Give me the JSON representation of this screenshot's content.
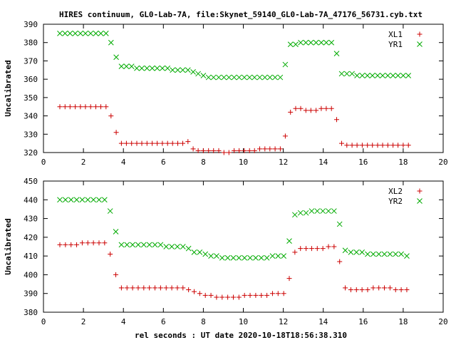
{
  "title": "HIRES continuum, GL0-Lab-7A, file:Skynet_59140_GL0-Lab-7A_47176_56731.cyb.txt",
  "xlabel": "rel seconds : UT date 2020-10-18T18:56:38.310",
  "colors": {
    "red": "#cc0000",
    "green": "#00aa00"
  },
  "chart_data": [
    {
      "type": "scatter",
      "ylabel": "Uncalibrated",
      "xlim": [
        0,
        20
      ],
      "ylim": [
        320,
        390
      ],
      "xticks": [
        0,
        2,
        4,
        6,
        8,
        10,
        12,
        14,
        16,
        18,
        20
      ],
      "yticks": [
        320,
        330,
        340,
        350,
        360,
        370,
        380,
        390
      ],
      "legend": "top-right",
      "x": [
        0.82,
        1.08,
        1.33,
        1.59,
        1.85,
        2.1,
        2.36,
        2.62,
        2.87,
        3.13,
        3.38,
        3.64,
        3.9,
        4.15,
        4.41,
        4.67,
        4.92,
        5.18,
        5.44,
        5.69,
        5.95,
        6.21,
        6.46,
        6.72,
        6.97,
        7.23,
        7.49,
        7.74,
        8.0,
        8.26,
        8.51,
        8.77,
        9.03,
        9.28,
        9.54,
        9.79,
        10.05,
        10.31,
        10.56,
        10.82,
        11.08,
        11.33,
        11.59,
        11.85,
        12.1,
        12.36,
        12.62,
        12.87,
        13.13,
        13.38,
        13.64,
        13.9,
        14.15,
        14.41,
        14.67,
        14.92,
        15.18,
        15.44,
        15.69,
        15.95,
        16.21,
        16.46,
        16.72,
        16.97,
        17.23,
        17.49,
        17.74,
        18.0,
        18.26
      ],
      "series": [
        {
          "name": "XL1",
          "marker": "plus",
          "color": "red",
          "values": [
            345,
            345,
            345,
            345,
            345,
            345,
            345,
            345,
            345,
            345,
            340,
            331,
            325,
            325,
            325,
            325,
            325,
            325,
            325,
            325,
            325,
            325,
            325,
            325,
            325,
            326,
            322,
            321,
            321,
            321,
            321,
            321,
            320,
            320,
            321,
            321,
            321,
            321,
            321,
            322,
            322,
            322,
            322,
            322,
            329,
            342,
            344,
            344,
            343,
            343,
            343,
            344,
            344,
            344,
            338,
            325,
            324,
            324,
            324,
            324,
            324,
            324,
            324,
            324,
            324,
            324,
            324,
            324,
            324
          ]
        },
        {
          "name": "YR1",
          "marker": "cross",
          "color": "green",
          "values": [
            385,
            385,
            385,
            385,
            385,
            385,
            385,
            385,
            385,
            385,
            380,
            372,
            367,
            367,
            367,
            366,
            366,
            366,
            366,
            366,
            366,
            366,
            365,
            365,
            365,
            365,
            364,
            363,
            362,
            361,
            361,
            361,
            361,
            361,
            361,
            361,
            361,
            361,
            361,
            361,
            361,
            361,
            361,
            361,
            368,
            379,
            379,
            380,
            380,
            380,
            380,
            380,
            380,
            380,
            374,
            363,
            363,
            363,
            362,
            362,
            362,
            362,
            362,
            362,
            362,
            362,
            362,
            362,
            362
          ]
        }
      ]
    },
    {
      "type": "scatter",
      "ylabel": "Uncalibrated",
      "xlim": [
        0,
        20
      ],
      "ylim": [
        380,
        450
      ],
      "xticks": [
        0,
        2,
        4,
        6,
        8,
        10,
        12,
        14,
        16,
        18,
        20
      ],
      "yticks": [
        380,
        390,
        400,
        410,
        420,
        430,
        440,
        450
      ],
      "legend": "top-right",
      "x": [
        0.82,
        1.1,
        1.38,
        1.66,
        1.94,
        2.22,
        2.5,
        2.78,
        3.06,
        3.34,
        3.62,
        3.9,
        4.18,
        4.46,
        4.74,
        5.02,
        5.3,
        5.58,
        5.86,
        6.14,
        6.42,
        6.7,
        6.98,
        7.26,
        7.54,
        7.82,
        8.1,
        8.38,
        8.66,
        8.94,
        9.22,
        9.5,
        9.78,
        10.06,
        10.34,
        10.62,
        10.9,
        11.18,
        11.46,
        11.74,
        12.02,
        12.3,
        12.58,
        12.86,
        13.14,
        13.42,
        13.7,
        13.98,
        14.26,
        14.54,
        14.82,
        15.1,
        15.38,
        15.66,
        15.94,
        16.22,
        16.5,
        16.78,
        17.06,
        17.34,
        17.62,
        17.9,
        18.18
      ],
      "series": [
        {
          "name": "XL2",
          "marker": "plus",
          "color": "red",
          "values": [
            416,
            416,
            416,
            416,
            417,
            417,
            417,
            417,
            417,
            411,
            400,
            393,
            393,
            393,
            393,
            393,
            393,
            393,
            393,
            393,
            393,
            393,
            393,
            392,
            391,
            390,
            389,
            389,
            388,
            388,
            388,
            388,
            388,
            389,
            389,
            389,
            389,
            389,
            390,
            390,
            390,
            398,
            412,
            414,
            414,
            414,
            414,
            414,
            415,
            415,
            407,
            393,
            392,
            392,
            392,
            392,
            393,
            393,
            393,
            393,
            392,
            392,
            392
          ]
        },
        {
          "name": "YR2",
          "marker": "cross",
          "color": "green",
          "values": [
            440,
            440,
            440,
            440,
            440,
            440,
            440,
            440,
            440,
            434,
            423,
            416,
            416,
            416,
            416,
            416,
            416,
            416,
            416,
            415,
            415,
            415,
            415,
            414,
            412,
            412,
            411,
            410,
            410,
            409,
            409,
            409,
            409,
            409,
            409,
            409,
            409,
            409,
            410,
            410,
            410,
            418,
            432,
            433,
            433,
            434,
            434,
            434,
            434,
            434,
            427,
            413,
            412,
            412,
            412,
            411,
            411,
            411,
            411,
            411,
            411,
            411,
            410
          ]
        }
      ]
    }
  ]
}
